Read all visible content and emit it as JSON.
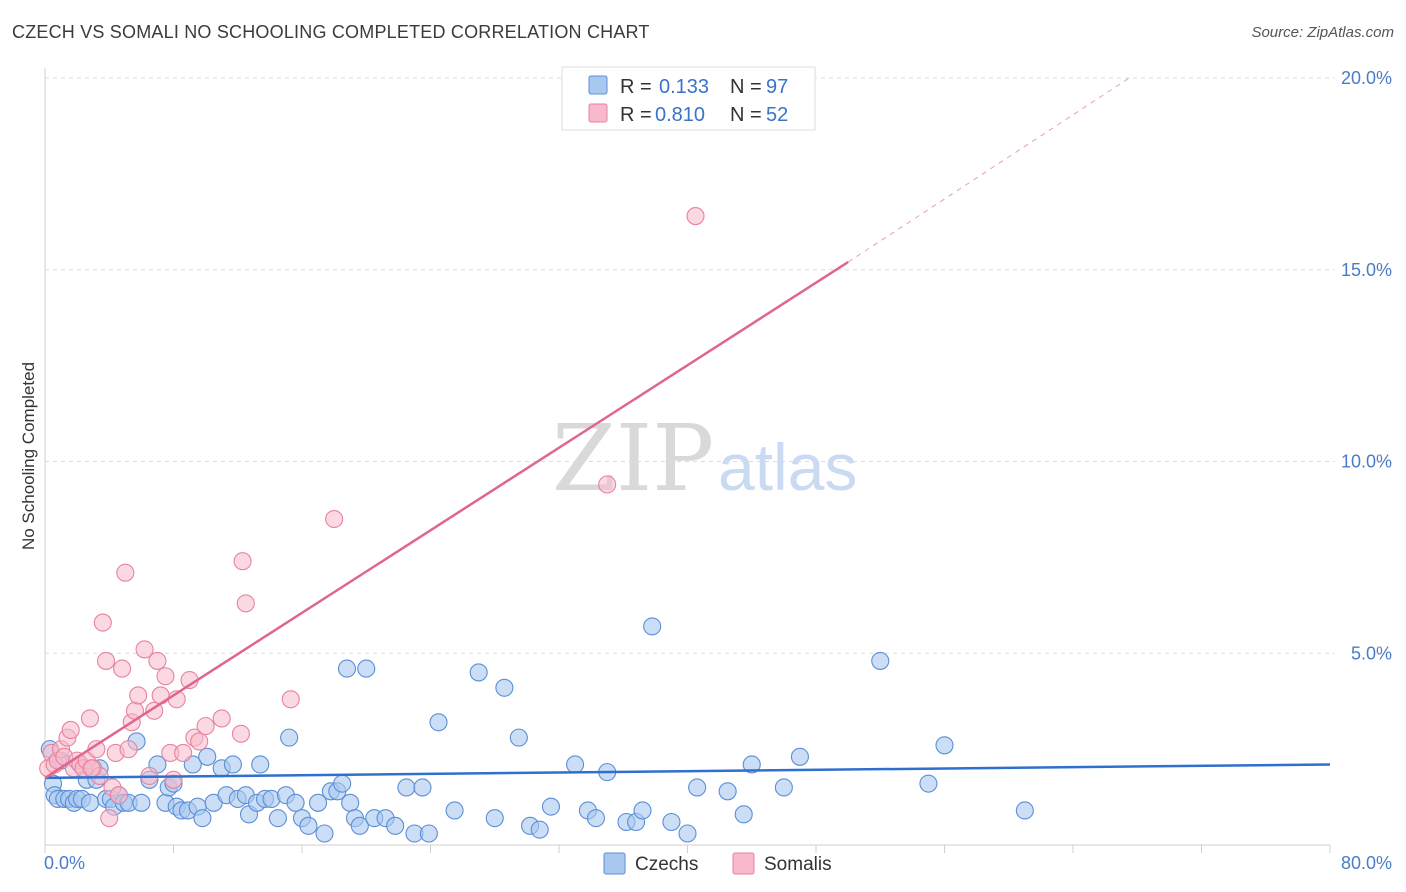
{
  "title": "CZECH VS SOMALI NO SCHOOLING COMPLETED CORRELATION CHART",
  "source": "Source: ZipAtlas.com",
  "watermark": {
    "zip": "ZIP",
    "atlas": "atlas"
  },
  "colors": {
    "czech_fill": "#a9c8f0",
    "czech_stroke": "#5b8fd6",
    "czech_line": "#2f6fce",
    "somali_fill": "#f7b9cb",
    "somali_stroke": "#e8829f",
    "somali_line": "#e0668f",
    "grid": "#dcdcdc",
    "axis_label": "#4a7cc9"
  },
  "legend": {
    "r_label": "R =",
    "n_label": "N =",
    "rows": [
      {
        "series": "Czechs",
        "r": "0.133",
        "n": "97"
      },
      {
        "series": "Somalis",
        "r": "0.810",
        "n": "52"
      }
    ]
  },
  "chart_data": {
    "type": "scatter",
    "title": "CZECH VS SOMALI NO SCHOOLING COMPLETED CORRELATION CHART",
    "xlabel": "",
    "ylabel": "No Schooling Completed",
    "xlim": [
      0,
      80
    ],
    "ylim": [
      0,
      20
    ],
    "x_tick_labels": [
      "0.0%",
      "80.0%"
    ],
    "y_ticks": [
      5,
      10,
      15,
      20
    ],
    "y_tick_labels": [
      "5.0%",
      "10.0%",
      "15.0%",
      "20.0%"
    ],
    "series": [
      {
        "name": "Czechs",
        "trend": {
          "x0": 0,
          "y0": 1.75,
          "x1": 80,
          "y1": 2.1
        },
        "points": [
          [
            0.3,
            2.5
          ],
          [
            0.5,
            1.6
          ],
          [
            0.6,
            1.3
          ],
          [
            0.8,
            1.2
          ],
          [
            1.0,
            2.2
          ],
          [
            1.2,
            1.2
          ],
          [
            1.5,
            1.2
          ],
          [
            1.8,
            1.1
          ],
          [
            2.0,
            1.2
          ],
          [
            2.3,
            1.2
          ],
          [
            2.6,
            1.7
          ],
          [
            2.8,
            1.1
          ],
          [
            3.2,
            1.7
          ],
          [
            3.4,
            2.0
          ],
          [
            3.8,
            1.2
          ],
          [
            4.1,
            1.2
          ],
          [
            4.3,
            1.0
          ],
          [
            4.6,
            1.3
          ],
          [
            4.9,
            1.1
          ],
          [
            5.2,
            1.1
          ],
          [
            5.7,
            2.7
          ],
          [
            6.0,
            1.1
          ],
          [
            6.5,
            1.7
          ],
          [
            7.0,
            2.1
          ],
          [
            7.5,
            1.1
          ],
          [
            7.7,
            1.5
          ],
          [
            8.0,
            1.6
          ],
          [
            8.2,
            1.0
          ],
          [
            8.5,
            0.9
          ],
          [
            8.9,
            0.9
          ],
          [
            9.2,
            2.1
          ],
          [
            9.5,
            1.0
          ],
          [
            9.8,
            0.7
          ],
          [
            10.1,
            2.3
          ],
          [
            10.5,
            1.1
          ],
          [
            11.0,
            2.0
          ],
          [
            11.3,
            1.3
          ],
          [
            11.7,
            2.1
          ],
          [
            12.0,
            1.2
          ],
          [
            12.5,
            1.3
          ],
          [
            12.7,
            0.8
          ],
          [
            13.2,
            1.1
          ],
          [
            13.4,
            2.1
          ],
          [
            13.7,
            1.2
          ],
          [
            14.1,
            1.2
          ],
          [
            14.5,
            0.7
          ],
          [
            15.0,
            1.3
          ],
          [
            15.2,
            2.8
          ],
          [
            15.6,
            1.1
          ],
          [
            16.0,
            0.7
          ],
          [
            16.4,
            0.5
          ],
          [
            17.0,
            1.1
          ],
          [
            17.4,
            0.3
          ],
          [
            17.8,
            1.4
          ],
          [
            18.2,
            1.4
          ],
          [
            18.5,
            1.6
          ],
          [
            18.8,
            4.6
          ],
          [
            19.0,
            1.1
          ],
          [
            19.3,
            0.7
          ],
          [
            19.6,
            0.5
          ],
          [
            20.0,
            4.6
          ],
          [
            20.5,
            0.7
          ],
          [
            21.2,
            0.7
          ],
          [
            21.8,
            0.5
          ],
          [
            22.5,
            1.5
          ],
          [
            23.0,
            0.3
          ],
          [
            23.5,
            1.5
          ],
          [
            23.9,
            0.3
          ],
          [
            24.5,
            3.2
          ],
          [
            25.5,
            0.9
          ],
          [
            27.0,
            4.5
          ],
          [
            28.0,
            0.7
          ],
          [
            28.6,
            4.1
          ],
          [
            29.5,
            2.8
          ],
          [
            30.2,
            0.5
          ],
          [
            30.8,
            0.4
          ],
          [
            31.5,
            1.0
          ],
          [
            33.0,
            2.1
          ],
          [
            33.8,
            0.9
          ],
          [
            34.3,
            0.7
          ],
          [
            35.0,
            1.9
          ],
          [
            36.2,
            0.6
          ],
          [
            36.8,
            0.6
          ],
          [
            37.2,
            0.9
          ],
          [
            37.8,
            5.7
          ],
          [
            39.0,
            0.6
          ],
          [
            40.0,
            0.3
          ],
          [
            40.6,
            1.5
          ],
          [
            42.5,
            1.4
          ],
          [
            43.5,
            0.8
          ],
          [
            44.0,
            2.1
          ],
          [
            46.0,
            1.5
          ],
          [
            47.0,
            2.3
          ],
          [
            52.0,
            4.8
          ],
          [
            55.0,
            1.6
          ],
          [
            56.0,
            2.6
          ],
          [
            61.0,
            0.9
          ]
        ]
      },
      {
        "name": "Somalis",
        "trend": {
          "x0": 0,
          "y0": 1.75,
          "x1": 50,
          "y1": 15.2,
          "dash_x1": 67.5,
          "dash_y1": 20.0
        },
        "points": [
          [
            0.2,
            2.0
          ],
          [
            0.4,
            2.4
          ],
          [
            0.6,
            2.1
          ],
          [
            0.8,
            2.2
          ],
          [
            1.0,
            2.5
          ],
          [
            1.2,
            2.3
          ],
          [
            1.4,
            2.8
          ],
          [
            1.6,
            3.0
          ],
          [
            1.8,
            2.0
          ],
          [
            2.0,
            2.2
          ],
          [
            2.2,
            2.1
          ],
          [
            2.4,
            2.0
          ],
          [
            2.6,
            2.2
          ],
          [
            2.8,
            3.3
          ],
          [
            3.0,
            2.0
          ],
          [
            3.2,
            2.5
          ],
          [
            3.4,
            1.8
          ],
          [
            3.6,
            5.8
          ],
          [
            3.8,
            4.8
          ],
          [
            4.0,
            0.7
          ],
          [
            4.2,
            1.5
          ],
          [
            4.4,
            2.4
          ],
          [
            4.6,
            1.3
          ],
          [
            4.8,
            4.6
          ],
          [
            5.0,
            7.1
          ],
          [
            5.2,
            2.5
          ],
          [
            5.4,
            3.2
          ],
          [
            5.6,
            3.5
          ],
          [
            5.8,
            3.9
          ],
          [
            6.2,
            5.1
          ],
          [
            6.5,
            1.8
          ],
          [
            7.0,
            4.8
          ],
          [
            7.2,
            3.9
          ],
          [
            7.5,
            4.4
          ],
          [
            7.8,
            2.4
          ],
          [
            8.0,
            1.7
          ],
          [
            8.2,
            3.8
          ],
          [
            8.6,
            2.4
          ],
          [
            9.0,
            4.3
          ],
          [
            9.3,
            2.8
          ],
          [
            9.6,
            2.7
          ],
          [
            10.0,
            3.1
          ],
          [
            11.0,
            3.3
          ],
          [
            12.2,
            2.9
          ],
          [
            12.3,
            7.4
          ],
          [
            12.5,
            6.3
          ],
          [
            15.3,
            3.8
          ],
          [
            18.0,
            8.5
          ],
          [
            35.0,
            9.4
          ],
          [
            40.5,
            16.4
          ],
          [
            2.9,
            2.0
          ],
          [
            6.8,
            3.5
          ]
        ]
      }
    ]
  }
}
